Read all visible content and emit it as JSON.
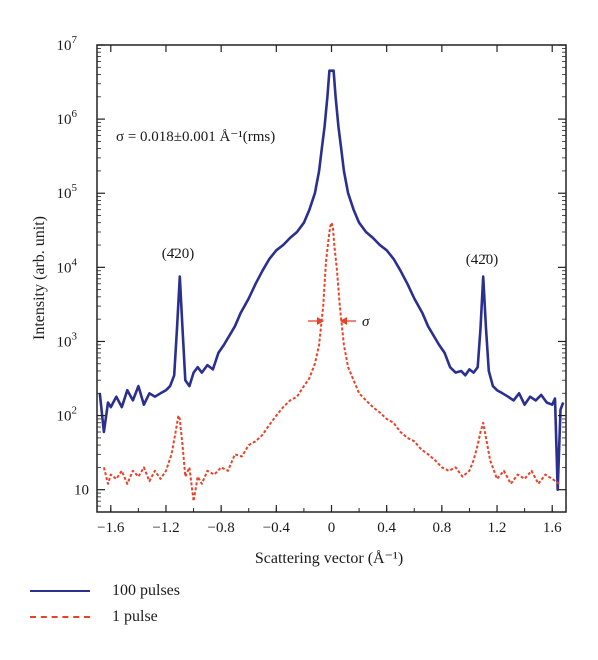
{
  "chart_data": {
    "type": "line",
    "xlabel": "Scattering vector (Å⁻¹)",
    "ylabel": "Intensity (arb. unit)",
    "xlim": [
      -1.7,
      1.7
    ],
    "ylim": [
      5,
      10000000
    ],
    "yscale": "log",
    "xticks": [
      -1.6,
      -1.2,
      -0.8,
      -0.4,
      0,
      0.4,
      0.8,
      1.2,
      1.6
    ],
    "xtick_labels": [
      "−1.6",
      "−1.2",
      "−0.8",
      "−0.4",
      "0",
      "0.4",
      "0.8",
      "1.2",
      "1.6"
    ],
    "yticks": [
      {
        "value": 10,
        "base": "10",
        "exp": ""
      },
      {
        "value": 100,
        "base": "10",
        "exp": "2"
      },
      {
        "value": 1000,
        "base": "10",
        "exp": "3"
      },
      {
        "value": 10000,
        "base": "10",
        "exp": "4"
      },
      {
        "value": 100000,
        "base": "10",
        "exp": "5"
      },
      {
        "value": 1000000,
        "base": "10",
        "exp": "6"
      },
      {
        "value": 10000000,
        "base": "10",
        "exp": "7"
      }
    ],
    "annotations": {
      "sigma_formula": "σ = 0.018±0.001 Å⁻¹(rms)",
      "peak_left": "(4̄20)",
      "peak_right": "(42̄0)",
      "sigma_marker": "σ"
    },
    "series": [
      {
        "name": "100 pulses",
        "color": "#2b2f8f",
        "style": "solid",
        "x": [
          -1.68,
          -1.65,
          -1.62,
          -1.6,
          -1.56,
          -1.52,
          -1.48,
          -1.44,
          -1.4,
          -1.36,
          -1.32,
          -1.28,
          -1.24,
          -1.2,
          -1.17,
          -1.14,
          -1.12,
          -1.1,
          -1.08,
          -1.06,
          -1.03,
          -1.0,
          -0.97,
          -0.94,
          -0.9,
          -0.86,
          -0.82,
          -0.78,
          -0.74,
          -0.7,
          -0.66,
          -0.6,
          -0.55,
          -0.5,
          -0.45,
          -0.4,
          -0.35,
          -0.3,
          -0.25,
          -0.2,
          -0.16,
          -0.12,
          -0.09,
          -0.07,
          -0.05,
          -0.03,
          -0.015,
          -0.005,
          0.0,
          0.005,
          0.015,
          0.03,
          0.05,
          0.07,
          0.09,
          0.12,
          0.16,
          0.2,
          0.25,
          0.3,
          0.35,
          0.4,
          0.45,
          0.5,
          0.55,
          0.6,
          0.66,
          0.7,
          0.74,
          0.78,
          0.82,
          0.86,
          0.9,
          0.94,
          0.97,
          1.0,
          1.03,
          1.06,
          1.08,
          1.1,
          1.12,
          1.14,
          1.17,
          1.2,
          1.24,
          1.28,
          1.32,
          1.36,
          1.4,
          1.44,
          1.48,
          1.52,
          1.56,
          1.6,
          1.62,
          1.64,
          1.66,
          1.68
        ],
        "y": [
          200,
          60,
          150,
          130,
          180,
          130,
          220,
          160,
          250,
          140,
          200,
          180,
          200,
          220,
          250,
          350,
          1500,
          7500,
          1500,
          300,
          250,
          380,
          450,
          380,
          480,
          420,
          700,
          900,
          1200,
          1600,
          2400,
          3800,
          6000,
          9000,
          13000,
          17000,
          20000,
          25000,
          30000,
          40000,
          60000,
          100000,
          200000,
          400000,
          800000,
          2000000,
          4500000,
          4500000,
          4500000,
          4500000,
          4500000,
          2000000,
          800000,
          400000,
          200000,
          100000,
          60000,
          40000,
          30000,
          25000,
          20000,
          17000,
          13000,
          9000,
          6000,
          3800,
          2400,
          1600,
          1200,
          900,
          700,
          450,
          380,
          400,
          350,
          420,
          380,
          450,
          1500,
          7500,
          1500,
          400,
          250,
          220,
          200,
          180,
          160,
          200,
          140,
          180,
          160,
          190,
          150,
          140,
          170,
          10,
          120,
          150
        ]
      },
      {
        "name": "1 pulse",
        "color": "#e8432a",
        "style": "dashed",
        "x": [
          -1.65,
          -1.62,
          -1.6,
          -1.56,
          -1.52,
          -1.48,
          -1.44,
          -1.4,
          -1.36,
          -1.32,
          -1.28,
          -1.24,
          -1.2,
          -1.16,
          -1.13,
          -1.11,
          -1.1,
          -1.08,
          -1.06,
          -1.03,
          -1.0,
          -0.97,
          -0.94,
          -0.9,
          -0.85,
          -0.8,
          -0.75,
          -0.7,
          -0.65,
          -0.6,
          -0.55,
          -0.5,
          -0.45,
          -0.4,
          -0.35,
          -0.3,
          -0.25,
          -0.2,
          -0.16,
          -0.12,
          -0.09,
          -0.06,
          -0.04,
          -0.02,
          -0.01,
          0.0,
          0.01,
          0.02,
          0.04,
          0.06,
          0.09,
          0.12,
          0.16,
          0.2,
          0.25,
          0.3,
          0.35,
          0.4,
          0.45,
          0.5,
          0.55,
          0.6,
          0.65,
          0.7,
          0.75,
          0.8,
          0.85,
          0.9,
          0.95,
          1.0,
          1.03,
          1.06,
          1.08,
          1.1,
          1.12,
          1.15,
          1.2,
          1.25,
          1.3,
          1.35,
          1.4,
          1.45,
          1.5,
          1.55,
          1.6,
          1.65
        ],
        "y": [
          20,
          12,
          16,
          14,
          18,
          12,
          18,
          15,
          20,
          13,
          18,
          14,
          18,
          30,
          60,
          100,
          90,
          40,
          15,
          20,
          7,
          15,
          12,
          18,
          16,
          20,
          18,
          30,
          28,
          40,
          45,
          55,
          75,
          100,
          130,
          160,
          180,
          250,
          320,
          500,
          900,
          3000,
          12000,
          25000,
          35000,
          40000,
          35000,
          20000,
          9000,
          3000,
          900,
          450,
          300,
          200,
          160,
          130,
          110,
          90,
          80,
          60,
          50,
          45,
          35,
          30,
          25,
          20,
          18,
          20,
          15,
          18,
          25,
          40,
          60,
          80,
          50,
          25,
          14,
          18,
          12,
          16,
          14,
          18,
          12,
          16,
          14,
          12
        ]
      }
    ],
    "legend": {
      "placement": "bottom-left",
      "entries": [
        {
          "label": "100 pulses",
          "color": "#2b2f8f",
          "style": "solid"
        },
        {
          "label": "1 pulse",
          "color": "#e8432a",
          "style": "dashed"
        }
      ]
    }
  }
}
